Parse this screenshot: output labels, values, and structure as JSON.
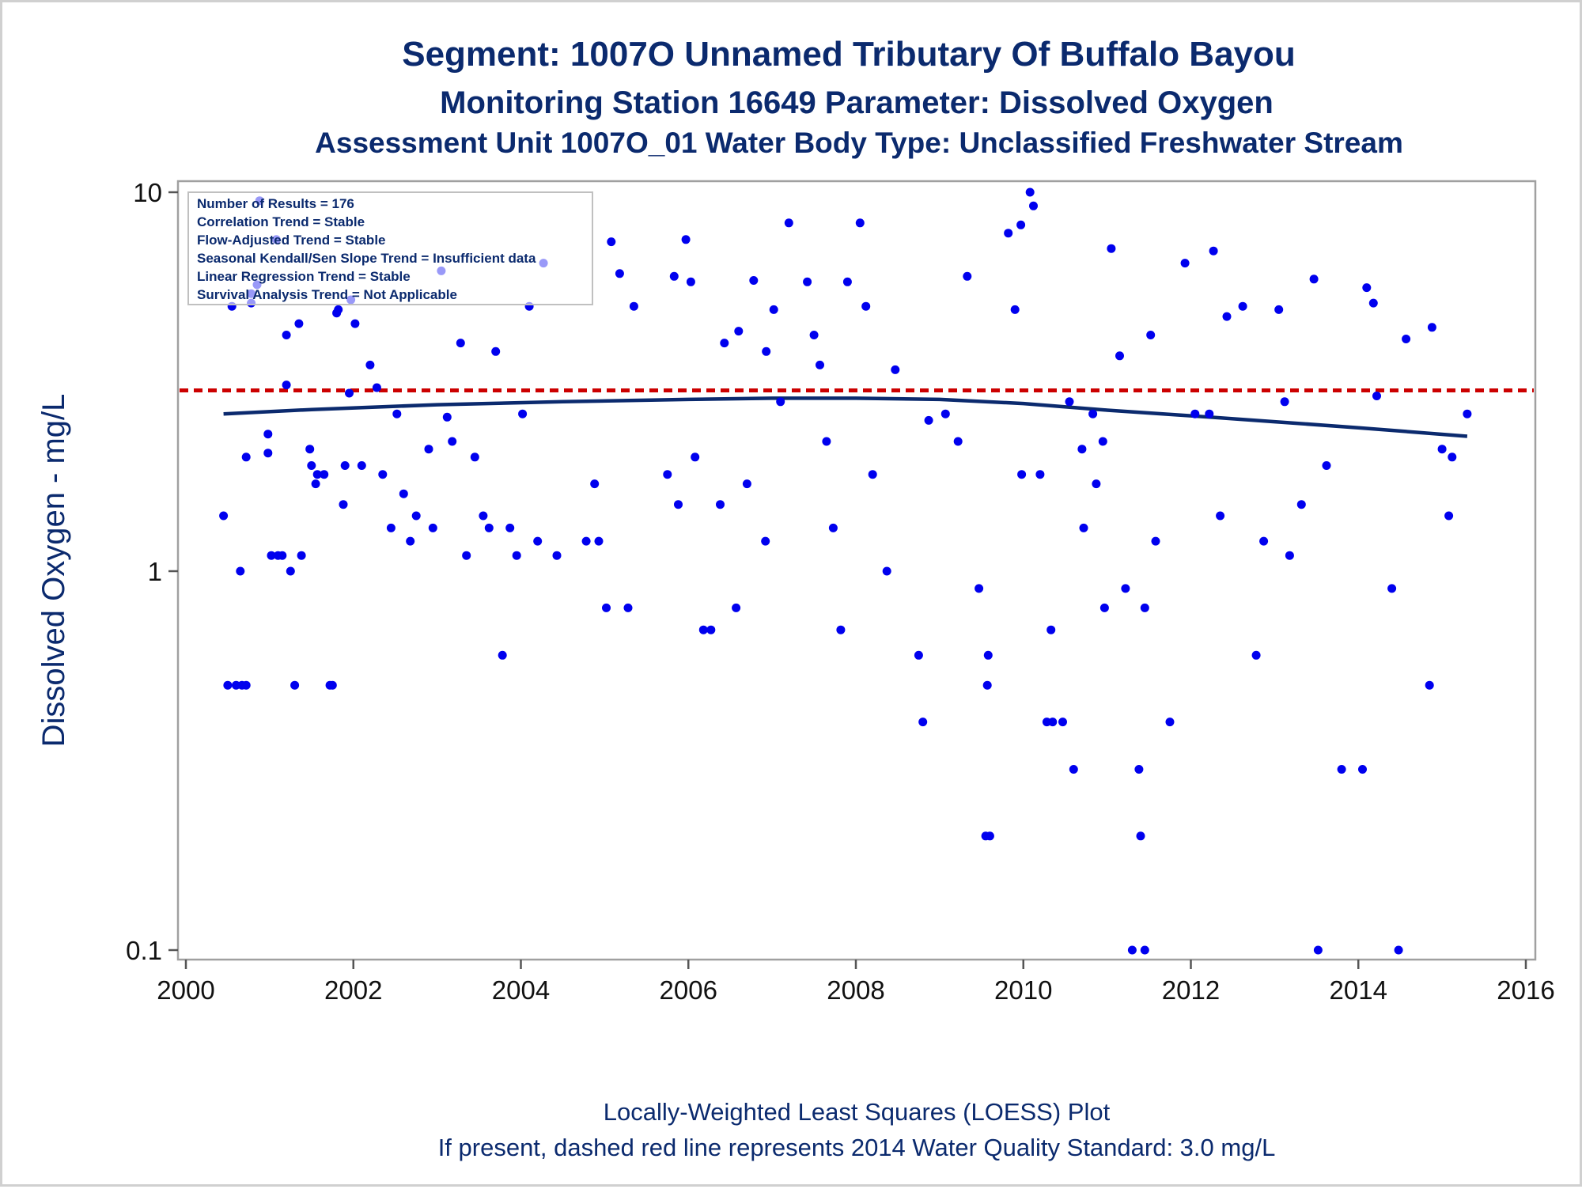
{
  "chart_data": {
    "type": "scatter",
    "title": "Segment: 1007O  Unnamed Tributary Of Buffalo Bayou",
    "subtitle": "Monitoring Station 16649 Parameter: Dissolved Oxygen",
    "subtitle2": "Assessment Unit 1007O_01   Water Body Type: Unclassified Freshwater Stream",
    "xlabel": "",
    "ylabel": "Dissolved Oxygen - mg/L",
    "footnote1": "Locally-Weighted Least Squares (LOESS) Plot",
    "footnote2": "If present, dashed red line represents 2014 Water Quality Standard: 3.0 mg/L",
    "yscale": "log",
    "xlim": [
      2000,
      2016
    ],
    "ylim": [
      0.1,
      10
    ],
    "xticks": [
      "2000",
      "2002",
      "2004",
      "2006",
      "2008",
      "2010",
      "2012",
      "2014",
      "2016"
    ],
    "yticks": [
      "0.1",
      "1",
      "10"
    ],
    "grid": false,
    "colors": {
      "points": "#0000ee",
      "loess": "#0b2a6e",
      "standard": "#cc0000",
      "text": "#0b2a6e"
    },
    "inset_lines": [
      "Number of Results = 176",
      "Correlation Trend = Stable",
      "Flow-Adjusted Trend = Stable",
      "Seasonal Kendall/Sen Slope Trend = Insufficient data",
      "Linear Regression Trend = Stable",
      "Survival Analysis Trend = Not Applicable"
    ],
    "standard_line": {
      "y": 3.0,
      "style": "dashed"
    },
    "loess": {
      "x": [
        2000.45,
        2001.5,
        2003.0,
        2004.5,
        2006.0,
        2007.0,
        2008.0,
        2009.0,
        2010.0,
        2011.0,
        2012.0,
        2013.0,
        2014.0,
        2015.3
      ],
      "y": [
        2.6,
        2.67,
        2.75,
        2.8,
        2.84,
        2.86,
        2.86,
        2.84,
        2.77,
        2.66,
        2.57,
        2.48,
        2.39,
        2.27
      ]
    },
    "points": [
      [
        2000.45,
        1.4
      ],
      [
        2000.5,
        0.5
      ],
      [
        2000.55,
        5.0
      ],
      [
        2000.6,
        0.5
      ],
      [
        2000.65,
        1.0
      ],
      [
        2000.67,
        0.5
      ],
      [
        2000.72,
        0.5
      ],
      [
        2000.72,
        2.0
      ],
      [
        2000.78,
        5.4
      ],
      [
        2000.78,
        5.1
      ],
      [
        2000.85,
        5.7
      ],
      [
        2000.88,
        9.5
      ],
      [
        2000.98,
        2.3
      ],
      [
        2000.98,
        2.05
      ],
      [
        2001.02,
        1.1
      ],
      [
        2001.08,
        7.5
      ],
      [
        2001.1,
        1.1
      ],
      [
        2001.15,
        1.1
      ],
      [
        2001.2,
        3.1
      ],
      [
        2001.2,
        4.2
      ],
      [
        2001.25,
        1.0
      ],
      [
        2001.3,
        0.5
      ],
      [
        2001.35,
        4.5
      ],
      [
        2001.38,
        1.1
      ],
      [
        2001.48,
        2.1
      ],
      [
        2001.5,
        1.9
      ],
      [
        2001.55,
        1.7
      ],
      [
        2001.57,
        1.8
      ],
      [
        2001.65,
        1.8
      ],
      [
        2001.72,
        0.5
      ],
      [
        2001.75,
        0.5
      ],
      [
        2001.8,
        4.8
      ],
      [
        2001.82,
        4.9
      ],
      [
        2001.88,
        1.5
      ],
      [
        2001.9,
        1.9
      ],
      [
        2001.95,
        2.95
      ],
      [
        2001.97,
        5.2
      ],
      [
        2002.02,
        4.5
      ],
      [
        2002.1,
        1.9
      ],
      [
        2002.2,
        3.5
      ],
      [
        2002.28,
        3.05
      ],
      [
        2002.35,
        1.8
      ],
      [
        2002.45,
        1.3
      ],
      [
        2002.52,
        2.6
      ],
      [
        2002.6,
        1.6
      ],
      [
        2002.68,
        1.2
      ],
      [
        2002.75,
        1.4
      ],
      [
        2002.9,
        2.1
      ],
      [
        2002.95,
        1.3
      ],
      [
        2003.05,
        6.2
      ],
      [
        2003.12,
        2.55
      ],
      [
        2003.18,
        2.2
      ],
      [
        2003.28,
        4.0
      ],
      [
        2003.35,
        1.1
      ],
      [
        2003.45,
        2.0
      ],
      [
        2003.55,
        1.4
      ],
      [
        2003.62,
        1.3
      ],
      [
        2003.7,
        3.8
      ],
      [
        2003.78,
        0.6
      ],
      [
        2003.87,
        1.3
      ],
      [
        2003.95,
        1.1
      ],
      [
        2004.02,
        2.6
      ],
      [
        2004.1,
        5.0
      ],
      [
        2004.2,
        1.2
      ],
      [
        2004.27,
        6.5
      ],
      [
        2004.43,
        1.1
      ],
      [
        2004.78,
        1.2
      ],
      [
        2004.88,
        1.7
      ],
      [
        2004.93,
        1.2
      ],
      [
        2005.02,
        0.8
      ],
      [
        2005.08,
        7.4
      ],
      [
        2005.18,
        6.1
      ],
      [
        2005.28,
        0.8
      ],
      [
        2005.35,
        5.0
      ],
      [
        2005.75,
        1.8
      ],
      [
        2005.83,
        6.0
      ],
      [
        2005.88,
        1.5
      ],
      [
        2005.97,
        7.5
      ],
      [
        2006.03,
        5.8
      ],
      [
        2006.08,
        2.0
      ],
      [
        2006.18,
        0.7
      ],
      [
        2006.27,
        0.7
      ],
      [
        2006.38,
        1.5
      ],
      [
        2006.43,
        4.0
      ],
      [
        2006.57,
        0.8
      ],
      [
        2006.6,
        4.3
      ],
      [
        2006.7,
        1.7
      ],
      [
        2006.78,
        5.85
      ],
      [
        2006.92,
        1.2
      ],
      [
        2006.93,
        3.8
      ],
      [
        2007.02,
        4.9
      ],
      [
        2007.1,
        2.8
      ],
      [
        2007.2,
        8.3
      ],
      [
        2007.42,
        5.8
      ],
      [
        2007.5,
        4.2
      ],
      [
        2007.57,
        3.5
      ],
      [
        2007.65,
        2.2
      ],
      [
        2007.73,
        1.3
      ],
      [
        2007.82,
        0.7
      ],
      [
        2007.9,
        5.8
      ],
      [
        2008.05,
        8.3
      ],
      [
        2008.12,
        5.0
      ],
      [
        2008.2,
        1.8
      ],
      [
        2008.37,
        1.0
      ],
      [
        2008.47,
        3.4
      ],
      [
        2008.75,
        0.6
      ],
      [
        2008.8,
        0.4
      ],
      [
        2008.87,
        2.5
      ],
      [
        2009.07,
        2.6
      ],
      [
        2009.22,
        2.2
      ],
      [
        2009.33,
        6.0
      ],
      [
        2009.47,
        0.9
      ],
      [
        2009.55,
        0.2
      ],
      [
        2009.57,
        0.5
      ],
      [
        2009.58,
        0.6
      ],
      [
        2009.6,
        0.2
      ],
      [
        2009.82,
        7.8
      ],
      [
        2009.9,
        4.9
      ],
      [
        2009.97,
        8.2
      ],
      [
        2009.98,
        1.8
      ],
      [
        2010.08,
        10.0
      ],
      [
        2010.12,
        9.2
      ],
      [
        2010.2,
        1.8
      ],
      [
        2010.28,
        0.4
      ],
      [
        2010.33,
        0.7
      ],
      [
        2010.35,
        0.4
      ],
      [
        2010.47,
        0.4
      ],
      [
        2010.55,
        2.8
      ],
      [
        2010.6,
        0.3
      ],
      [
        2010.7,
        2.1
      ],
      [
        2010.72,
        1.3
      ],
      [
        2010.83,
        2.6
      ],
      [
        2010.87,
        1.7
      ],
      [
        2010.95,
        2.2
      ],
      [
        2010.97,
        0.8
      ],
      [
        2011.05,
        7.1
      ],
      [
        2011.15,
        3.7
      ],
      [
        2011.22,
        0.9
      ],
      [
        2011.3,
        0.1
      ],
      [
        2011.38,
        0.3
      ],
      [
        2011.4,
        0.2
      ],
      [
        2011.45,
        0.1
      ],
      [
        2011.45,
        0.8
      ],
      [
        2011.52,
        4.2
      ],
      [
        2011.58,
        1.2
      ],
      [
        2011.75,
        0.4
      ],
      [
        2011.93,
        6.5
      ],
      [
        2012.05,
        2.6
      ],
      [
        2012.22,
        2.6
      ],
      [
        2012.27,
        7.0
      ],
      [
        2012.35,
        1.4
      ],
      [
        2012.43,
        4.7
      ],
      [
        2012.62,
        5.0
      ],
      [
        2012.78,
        0.6
      ],
      [
        2012.87,
        1.2
      ],
      [
        2013.05,
        4.9
      ],
      [
        2013.12,
        2.8
      ],
      [
        2013.18,
        1.1
      ],
      [
        2013.32,
        1.5
      ],
      [
        2013.47,
        5.9
      ],
      [
        2013.52,
        0.1
      ],
      [
        2013.62,
        1.9
      ],
      [
        2013.8,
        0.3
      ],
      [
        2014.05,
        0.3
      ],
      [
        2014.1,
        5.6
      ],
      [
        2014.18,
        5.1
      ],
      [
        2014.22,
        2.9
      ],
      [
        2014.4,
        0.9
      ],
      [
        2014.48,
        0.1
      ],
      [
        2014.57,
        4.1
      ],
      [
        2014.85,
        0.5
      ],
      [
        2014.88,
        4.4
      ],
      [
        2015.0,
        2.1
      ],
      [
        2015.08,
        1.4
      ],
      [
        2015.12,
        2.0
      ],
      [
        2015.3,
        2.6
      ]
    ]
  }
}
